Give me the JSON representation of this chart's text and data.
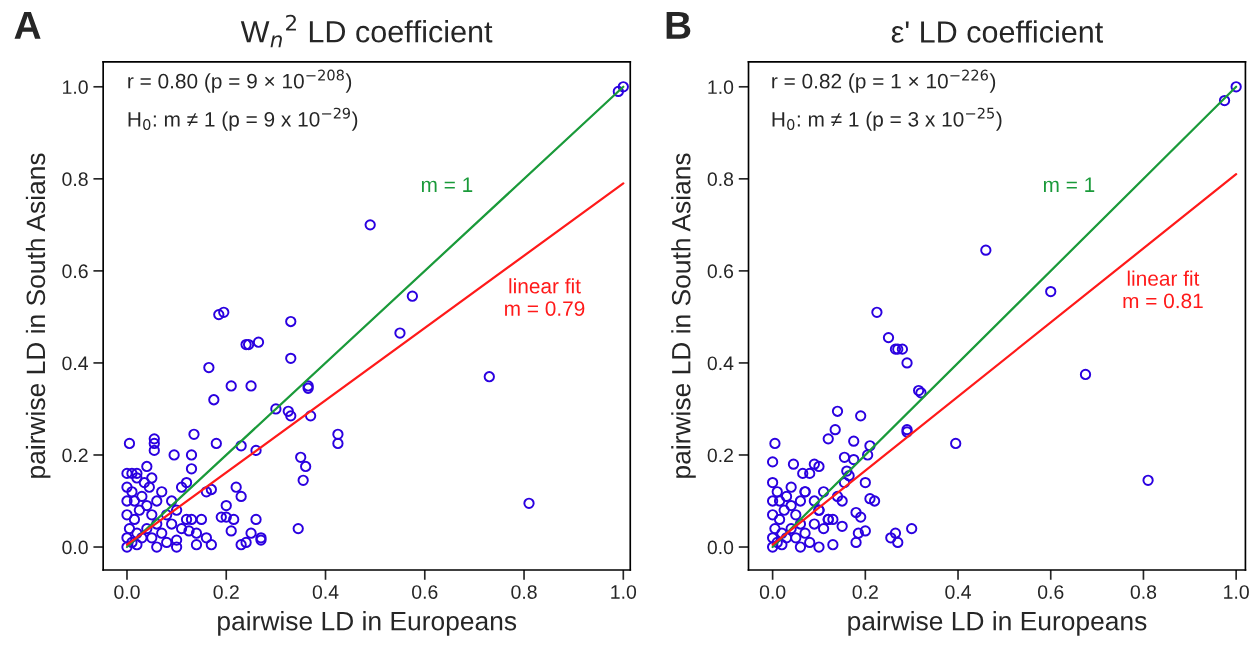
{
  "chart_data": [
    {
      "type": "scatter",
      "title": "W$_{n}$$^{2}$ LD coefficient",
      "xlabel": "pairwise LD in Europeans",
      "ylabel": "pairwise LD in South Asians",
      "xlim": [
        -0.048,
        1.014
      ],
      "ylim": [
        -0.05,
        1.054
      ],
      "xticks": [
        {
          "value": 0,
          "label": "0.0"
        },
        {
          "value": 0.2,
          "label": "0.2"
        },
        {
          "value": 0.4,
          "label": "0.4"
        },
        {
          "value": 0.6,
          "label": "0.6"
        },
        {
          "value": 0.8,
          "label": "0.8"
        },
        {
          "value": 1.0,
          "label": "1.0"
        }
      ],
      "yticks": [
        {
          "value": 0,
          "label": "0.0"
        },
        {
          "value": 0.2,
          "label": "0.2"
        },
        {
          "value": 0.4,
          "label": "0.4"
        },
        {
          "value": 0.6,
          "label": "0.6"
        },
        {
          "value": 0.8,
          "label": "0.8"
        },
        {
          "value": 1.0,
          "label": "1.0"
        }
      ],
      "annotations": [
        "A",
        "r = 0.80 (p = 9 × 10$^{−208}$)",
        "H$_{0}$: m ≠ 1 (p = 9 x 10$^{−29}$)"
      ],
      "series": [
        {
          "marker": "circle",
          "color": "#2a00e0",
          "x": [
            1.0,
            0.99,
            0.49,
            0.575,
            0.55,
            0.73,
            0.81,
            0.195,
            0.185,
            0.33,
            0.24,
            0.245,
            0.265,
            0.33,
            0.165,
            0.21,
            0.25,
            0.365,
            0.365,
            0.175,
            0.3,
            0.325,
            0.33,
            0.37,
            0.425,
            0.425,
            0.35,
            0.36,
            0.355,
            0.345,
            0.23,
            0.26,
            0.18,
            0.135,
            0.13,
            0.13,
            0.095,
            0.055,
            0.055,
            0.055,
            0.04,
            0.005,
            0.0,
            0.01,
            0.02,
            0.22,
            0.23,
            0.215,
            0.2,
            0.26,
            0.27,
            0.27,
            0.25,
            0.23,
            0.24,
            0.2,
            0.21,
            0.16,
            0.17,
            0.19,
            0.15,
            0.125,
            0.1,
            0.14,
            0.17,
            0.12,
            0.11,
            0.08,
            0.0,
            0.01,
            0.02,
            0.03,
            0.005,
            0.015,
            0.025,
            0.0,
            0.01,
            0.03,
            0.04,
            0.05,
            0.06,
            0.07,
            0.08,
            0.05,
            0.04,
            0.02,
            0.0,
            0.0,
            0.06,
            0.07,
            0.09,
            0.1,
            0.11,
            0.12,
            0.09,
            0.035,
            0.045,
            0.0,
            0.015,
            0.06,
            0.1,
            0.13,
            0.14,
            0.16,
            0.05,
            0.02
          ],
          "values": [
            1.0,
            0.99,
            0.7,
            0.545,
            0.465,
            0.37,
            0.095,
            0.51,
            0.505,
            0.49,
            0.44,
            0.44,
            0.445,
            0.41,
            0.39,
            0.35,
            0.35,
            0.35,
            0.345,
            0.32,
            0.3,
            0.295,
            0.285,
            0.285,
            0.245,
            0.225,
            0.195,
            0.175,
            0.145,
            0.04,
            0.22,
            0.21,
            0.225,
            0.245,
            0.2,
            0.17,
            0.2,
            0.235,
            0.225,
            0.21,
            0.175,
            0.225,
            0.16,
            0.16,
            0.16,
            0.13,
            0.11,
            0.06,
            0.065,
            0.06,
            0.02,
            0.015,
            0.03,
            0.005,
            0.01,
            0.09,
            0.035,
            0.12,
            0.125,
            0.065,
            0.06,
            0.035,
            0.015,
            0.005,
            0.005,
            0.14,
            0.13,
            0.07,
            0.0,
            0.01,
            0.005,
            0.02,
            0.04,
            0.06,
            0.08,
            0.1,
            0.12,
            0.11,
            0.09,
            0.07,
            0.05,
            0.03,
            0.01,
            0.02,
            0.04,
            0.03,
            0.07,
            0.02,
            0.1,
            0.12,
            0.05,
            0.08,
            0.04,
            0.06,
            0.1,
            0.14,
            0.13,
            0.13,
            0.1,
            0.0,
            0.0,
            0.06,
            0.03,
            0.02,
            0.15,
            0.15
          ]
        },
        {
          "type": "line",
          "name": "m = 1",
          "color": "#1a9a3a",
          "x": [
            0,
            1
          ],
          "values": [
            0,
            1
          ]
        },
        {
          "type": "line",
          "name": "linear fit\nm = 0.79",
          "color": "#ff1a1a",
          "x": [
            0,
            1
          ],
          "values": [
            0.005,
            0.79
          ]
        }
      ]
    },
    {
      "type": "scatter",
      "title": "ε' LD coefficient",
      "xlabel": "pairwise LD in Europeans",
      "ylabel": "pairwise LD in South Asians",
      "xlim": [
        -0.052,
        1.02
      ],
      "ylim": [
        -0.05,
        1.054
      ],
      "xticks": [
        {
          "value": 0,
          "label": "0.0"
        },
        {
          "value": 0.2,
          "label": "0.2"
        },
        {
          "value": 0.4,
          "label": "0.4"
        },
        {
          "value": 0.6,
          "label": "0.6"
        },
        {
          "value": 0.8,
          "label": "0.8"
        },
        {
          "value": 1.0,
          "label": "1.0"
        }
      ],
      "yticks": [
        {
          "value": 0,
          "label": "0.0"
        },
        {
          "value": 0.2,
          "label": "0.2"
        },
        {
          "value": 0.4,
          "label": "0.4"
        },
        {
          "value": 0.6,
          "label": "0.6"
        },
        {
          "value": 0.8,
          "label": "0.8"
        },
        {
          "value": 1.0,
          "label": "1.0"
        }
      ],
      "annotations": [
        "B",
        "r = 0.82 (p = 1 × 10$^{−226}$)",
        "H$_{0}$: m ≠ 1 (p = 3 x 10$^{−25}$)"
      ],
      "series": [
        {
          "marker": "circle",
          "color": "#2a00e0",
          "x": [
            1.0,
            0.975,
            0.46,
            0.6,
            0.675,
            0.81,
            0.395,
            0.225,
            0.25,
            0.265,
            0.27,
            0.28,
            0.29,
            0.315,
            0.32,
            0.29,
            0.29,
            0.14,
            0.135,
            0.19,
            0.12,
            0.175,
            0.21,
            0.155,
            0.175,
            0.205,
            0.16,
            0.165,
            0.155,
            0.09,
            0.1,
            0.08,
            0.065,
            0.005,
            0.0,
            0.045,
            0.21,
            0.22,
            0.2,
            0.15,
            0.18,
            0.19,
            0.15,
            0.12,
            0.3,
            0.265,
            0.27,
            0.255,
            0.185,
            0.18,
            0.2,
            0.13,
            0.14,
            0.11,
            0.1,
            0.0,
            0.01,
            0.02,
            0.03,
            0.005,
            0.015,
            0.025,
            0.0,
            0.01,
            0.03,
            0.04,
            0.05,
            0.06,
            0.07,
            0.08,
            0.05,
            0.04,
            0.02,
            0.0,
            0.0,
            0.06,
            0.07,
            0.09,
            0.1,
            0.11,
            0.12,
            0.09,
            0.0,
            0.04,
            0.07,
            0.015,
            0.06,
            0.1,
            0.13
          ],
          "values": [
            1.0,
            0.97,
            0.645,
            0.555,
            0.375,
            0.145,
            0.225,
            0.51,
            0.455,
            0.43,
            0.43,
            0.43,
            0.4,
            0.34,
            0.335,
            0.25,
            0.255,
            0.295,
            0.255,
            0.285,
            0.235,
            0.23,
            0.22,
            0.195,
            0.19,
            0.2,
            0.165,
            0.155,
            0.14,
            0.18,
            0.175,
            0.16,
            0.16,
            0.225,
            0.185,
            0.18,
            0.105,
            0.1,
            0.14,
            0.1,
            0.075,
            0.065,
            0.045,
            0.06,
            0.04,
            0.03,
            0.01,
            0.02,
            0.03,
            0.01,
            0.035,
            0.005,
            0.11,
            0.12,
            0.08,
            0.0,
            0.01,
            0.005,
            0.02,
            0.04,
            0.06,
            0.08,
            0.1,
            0.12,
            0.11,
            0.09,
            0.07,
            0.05,
            0.03,
            0.01,
            0.02,
            0.04,
            0.03,
            0.07,
            0.02,
            0.1,
            0.12,
            0.05,
            0.08,
            0.04,
            0.06,
            0.1,
            0.14,
            0.13,
            0.12,
            0.1,
            0.0,
            0.0,
            0.06
          ]
        },
        {
          "type": "line",
          "name": "m = 1",
          "color": "#1a9a3a",
          "x": [
            0,
            1
          ],
          "values": [
            0,
            1
          ]
        },
        {
          "type": "line",
          "name": "linear fit\nm = 0.81",
          "color": "#ff1a1a",
          "x": [
            0,
            1
          ],
          "values": [
            0.005,
            0.81
          ]
        }
      ]
    }
  ]
}
